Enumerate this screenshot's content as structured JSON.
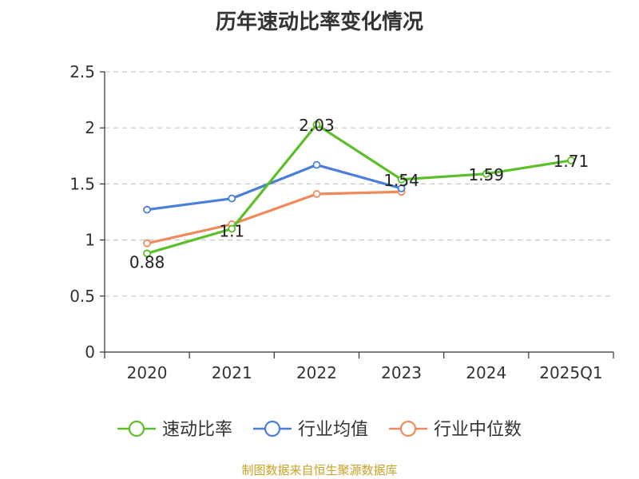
{
  "chart_data": {
    "type": "line",
    "title": "历年速动比率变化情况",
    "xlabel": "",
    "ylabel": "",
    "categories": [
      "2020",
      "2021",
      "2022",
      "2023",
      "2024",
      "2025Q1"
    ],
    "ylim": [
      0,
      2.5
    ],
    "yticks": [
      0,
      0.5,
      1,
      1.5,
      2,
      2.5
    ],
    "ytick_labels": [
      "0",
      "0.5",
      "1",
      "1.5",
      "2",
      "2.5"
    ],
    "grid": true,
    "legend_position": "bottom-center",
    "series": [
      {
        "name": "速动比率",
        "color": "#5cbf2a",
        "values": [
          0.88,
          1.1,
          2.03,
          1.54,
          1.59,
          1.71
        ],
        "labels": [
          "0.88",
          "1.1",
          "2.03",
          "1.54",
          "1.59",
          "1.71"
        ]
      },
      {
        "name": "行业均值",
        "color": "#4a7fd9",
        "values": [
          1.27,
          1.37,
          1.67,
          1.46,
          null,
          null
        ]
      },
      {
        "name": "行业中位数",
        "color": "#f08a5d",
        "values": [
          0.97,
          1.14,
          1.41,
          1.43,
          null,
          null
        ]
      }
    ],
    "source": "制图数据来自恒生聚源数据库"
  }
}
